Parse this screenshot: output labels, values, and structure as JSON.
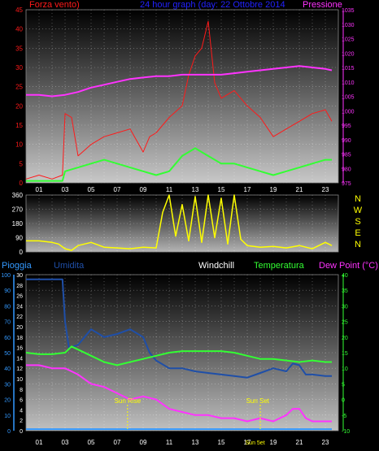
{
  "colors": {
    "wind": "#ff1a1a",
    "pressure": "#ff33ff",
    "gust": "#33ff33",
    "direction": "#ffff00",
    "rain": "#3399ff",
    "humidity": "#1f4fa8",
    "windchill": "#ffffff",
    "temperature": "#33ff33",
    "dewpoint": "#ff33ff",
    "title": "#2222ff",
    "tick": "#ffffff",
    "sun": "#ffff00"
  },
  "header": {
    "wind_label": "Forza vento)",
    "title": "24 hour graph (day: 22 Ottobre 2014",
    "pressure_label": "Pressione"
  },
  "bottom_header": {
    "rain_label": "Pioggia",
    "humidity_label": "Umidita",
    "windchill_label": "Windchill",
    "temperature_label": "Temperatura",
    "dewpoint_label": "Dew Point (°C)"
  },
  "hours": [
    "01",
    "03",
    "05",
    "07",
    "09",
    "11",
    "13",
    "15",
    "17",
    "19",
    "21",
    "23"
  ],
  "compass": [
    "N",
    "W",
    "S",
    "E",
    "N"
  ],
  "annotations": {
    "sunrise": "Sun Rise",
    "sunset": "Sun Set",
    "sunset_hour": "Sun 5et"
  },
  "chart_data": [
    {
      "type": "line",
      "title": "24 hour graph (day: 22 Ottobre 2014",
      "x_ticks": [
        "01",
        "03",
        "05",
        "07",
        "09",
        "11",
        "13",
        "15",
        "17",
        "19",
        "21",
        "23"
      ],
      "left_axis": {
        "label": "Forza vento)",
        "range": [
          0,
          45
        ],
        "ticks": [
          0,
          5,
          10,
          15,
          20,
          25,
          30,
          35,
          40,
          45
        ]
      },
      "right_axis": {
        "label": "Pressione",
        "range": [
          975,
          1035
        ],
        "ticks": [
          975,
          980,
          985,
          990,
          995,
          1000,
          1005,
          1010,
          1015,
          1020,
          1025,
          1030,
          1035
        ]
      },
      "grid": true,
      "series": [
        {
          "axis": "left",
          "hour": [
            0,
            1,
            2,
            2.8,
            3,
            3.5,
            4,
            5,
            6,
            7,
            8,
            9,
            9.5,
            10,
            11,
            12,
            12.5,
            13,
            13.5,
            14,
            14.5,
            15,
            16,
            17,
            18,
            19,
            20,
            21,
            22,
            23,
            23.5
          ],
          "values": [
            1,
            2,
            1,
            2,
            18,
            17,
            7,
            10,
            12,
            13,
            14,
            8,
            12,
            13,
            17,
            20,
            28,
            33,
            35,
            42,
            26,
            22,
            24,
            20,
            17,
            12,
            14,
            16,
            18,
            19,
            16
          ]
        },
        {
          "axis": "left",
          "hour": [
            0,
            1,
            2,
            2.8,
            3,
            4,
            5,
            6,
            7,
            8,
            9,
            10,
            11,
            12,
            13,
            14,
            15,
            16,
            17,
            18,
            19,
            20,
            21,
            22,
            23,
            23.5
          ],
          "values": [
            0.5,
            0.5,
            0.5,
            0.5,
            3,
            4,
            5,
            6,
            5,
            4,
            3,
            2,
            3,
            7,
            9,
            7,
            5,
            5,
            4,
            3,
            2,
            3,
            4,
            5,
            6,
            6
          ]
        },
        {
          "axis": "right",
          "hour": [
            0,
            1,
            2,
            3,
            4,
            5,
            6,
            7,
            8,
            9,
            10,
            11,
            12,
            13,
            14,
            15,
            16,
            17,
            18,
            19,
            20,
            21,
            22,
            23,
            23.5
          ],
          "values": [
            1005.5,
            1005.5,
            1005,
            1005.5,
            1006.5,
            1008,
            1009,
            1010,
            1011,
            1011.5,
            1012,
            1012,
            1012.5,
            1012.5,
            1012.5,
            1012.5,
            1013,
            1013.5,
            1014,
            1014.5,
            1015,
            1015.5,
            1015,
            1014.5,
            1014
          ]
        }
      ]
    },
    {
      "type": "line",
      "y_ticks": [
        0,
        90,
        180,
        270,
        360
      ],
      "range": [
        0,
        360
      ],
      "compass_labels": [
        "N",
        "W",
        "S",
        "E",
        "N"
      ],
      "series": [
        {
          "hour": [
            0,
            1,
            2,
            2.5,
            3,
            3.5,
            4,
            5,
            6,
            7,
            8,
            9,
            10,
            10.5,
            11,
            11.5,
            12,
            12.5,
            13,
            13.5,
            14,
            14.5,
            15,
            15.5,
            16,
            16.5,
            17,
            18,
            19,
            20,
            21,
            22,
            23,
            23.5
          ],
          "values": [
            70,
            70,
            60,
            50,
            20,
            10,
            40,
            60,
            30,
            25,
            20,
            30,
            25,
            250,
            360,
            100,
            300,
            70,
            350,
            60,
            360,
            90,
            340,
            50,
            360,
            80,
            40,
            30,
            35,
            25,
            40,
            20,
            60,
            40
          ]
        }
      ]
    },
    {
      "type": "line",
      "x_ticks": [
        "01",
        "03",
        "05",
        "07",
        "09",
        "11",
        "13",
        "15",
        "17",
        "19",
        "21",
        "23"
      ],
      "left_axis": {
        "label": "Pioggia",
        "range": [
          0,
          100
        ],
        "ticks": [
          0,
          10,
          20,
          30,
          40,
          50,
          60,
          70,
          80,
          90,
          100
        ]
      },
      "left_axis2": {
        "label": "Umidita",
        "range": [
          0,
          30
        ],
        "ticks": [
          0,
          2,
          4,
          6,
          8,
          10,
          12,
          14,
          16,
          18,
          20,
          22,
          24,
          26,
          28,
          30
        ]
      },
      "right_axis": {
        "label": "Dew Point (°C)",
        "range": [
          -10,
          40
        ],
        "ticks": [
          -10,
          -5,
          0,
          5,
          10,
          15,
          20,
          25,
          30,
          35,
          40
        ]
      },
      "grid": true,
      "series": [
        {
          "axis": "left",
          "hour": [
            0,
            3,
            3.5,
            4,
            5,
            6,
            7,
            8,
            9,
            10,
            11,
            12,
            13,
            14,
            15,
            16,
            17,
            18,
            19,
            20,
            20.5,
            21,
            21.5,
            22,
            23,
            23.5
          ],
          "values": [
            1,
            1,
            1,
            1,
            1,
            1,
            1,
            1,
            1,
            1,
            1,
            1,
            1,
            1,
            1,
            1,
            1,
            1,
            1,
            1,
            1,
            1,
            1,
            1,
            1,
            1
          ]
        },
        {
          "axis": "left",
          "hour": [
            0,
            2.8,
            3,
            3.3,
            4,
            5,
            6,
            7,
            8,
            9,
            9.5,
            10,
            11,
            12,
            13,
            14,
            15,
            16,
            17,
            18,
            19,
            20,
            20.5,
            21,
            21.5,
            22,
            23,
            23.5
          ],
          "values": [
            97,
            97,
            70,
            53,
            55,
            65,
            60,
            62,
            65,
            60,
            50,
            45,
            40,
            40,
            38,
            37,
            36,
            35,
            34,
            37,
            40,
            38,
            43,
            42,
            36,
            36,
            35,
            35
          ]
        },
        {
          "axis": "right",
          "hour": [
            0,
            1,
            2,
            3,
            3.5,
            4,
            5,
            6,
            7,
            8,
            9,
            10,
            11,
            12,
            13,
            14,
            15,
            16,
            17,
            18,
            19,
            20,
            21,
            22,
            23,
            23.5
          ],
          "values": [
            15,
            14.5,
            14.5,
            15,
            17,
            16,
            14,
            12,
            11,
            12,
            13,
            14,
            15,
            15.5,
            15.5,
            15.5,
            15.5,
            15,
            14,
            13,
            13,
            12.5,
            12,
            12.5,
            12,
            12
          ]
        },
        {
          "axis": "right",
          "hour": [
            0,
            1,
            2,
            3,
            3.5,
            4,
            5,
            6,
            7,
            8,
            9,
            10,
            11,
            12,
            13,
            14,
            15,
            16,
            17,
            18,
            19,
            20,
            20.5,
            21,
            21.5,
            22,
            23,
            23.5
          ],
          "values": [
            11,
            11,
            10,
            10,
            9,
            8,
            5,
            4,
            2,
            0,
            1,
            0,
            -3,
            -4,
            -5,
            -5,
            -6,
            -6,
            -7,
            -6,
            -7,
            -5,
            -3,
            -3,
            -6,
            -7,
            -7,
            -7
          ]
        }
      ]
    }
  ]
}
